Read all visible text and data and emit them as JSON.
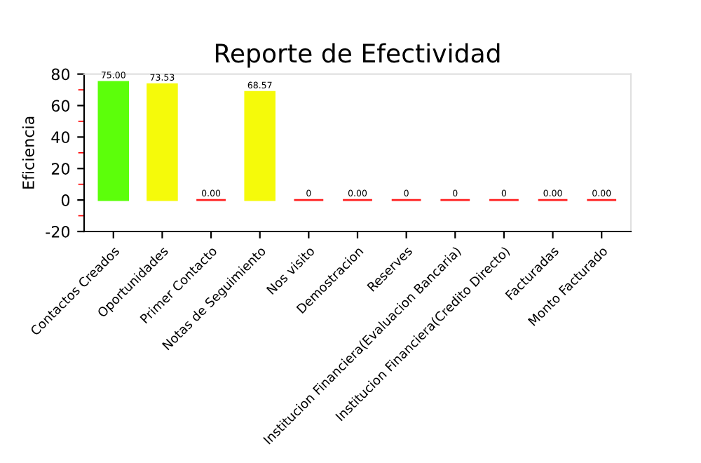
{
  "chart_data": {
    "type": "bar",
    "title": "Reporte de Efectividad",
    "ylabel": "Eficiencia",
    "categories": [
      "Contactos Creados",
      "Oportunidades",
      "Primer Contacto",
      "Notas de Seguimiento",
      "Nos visito",
      "Demostracion",
      "Reserves",
      "Institucion Financiera(Evaluacion Bancaria)",
      "Institucion Financiera(Credito Directo)",
      "Facturadas",
      "Monto Facturado"
    ],
    "values": [
      75.0,
      73.53,
      0,
      68.57,
      0,
      0,
      0,
      0,
      0,
      0,
      0
    ],
    "value_labels": [
      "75.00",
      "73.53",
      "0.00",
      "68.57",
      "0",
      "0.00",
      "0",
      "0",
      "0",
      "0.00",
      "0.00"
    ],
    "colors": [
      "#5cff0a",
      "#f5fa0a",
      "#ff2020",
      "#f5fa0a",
      "#ff2020",
      "#ff2020",
      "#ff2020",
      "#ff2020",
      "#ff2020",
      "#ff2020",
      "#ff2020"
    ],
    "ylim": [
      -20,
      80
    ],
    "yticks": [
      -20,
      0,
      20,
      40,
      60,
      80
    ],
    "grid": false
  }
}
